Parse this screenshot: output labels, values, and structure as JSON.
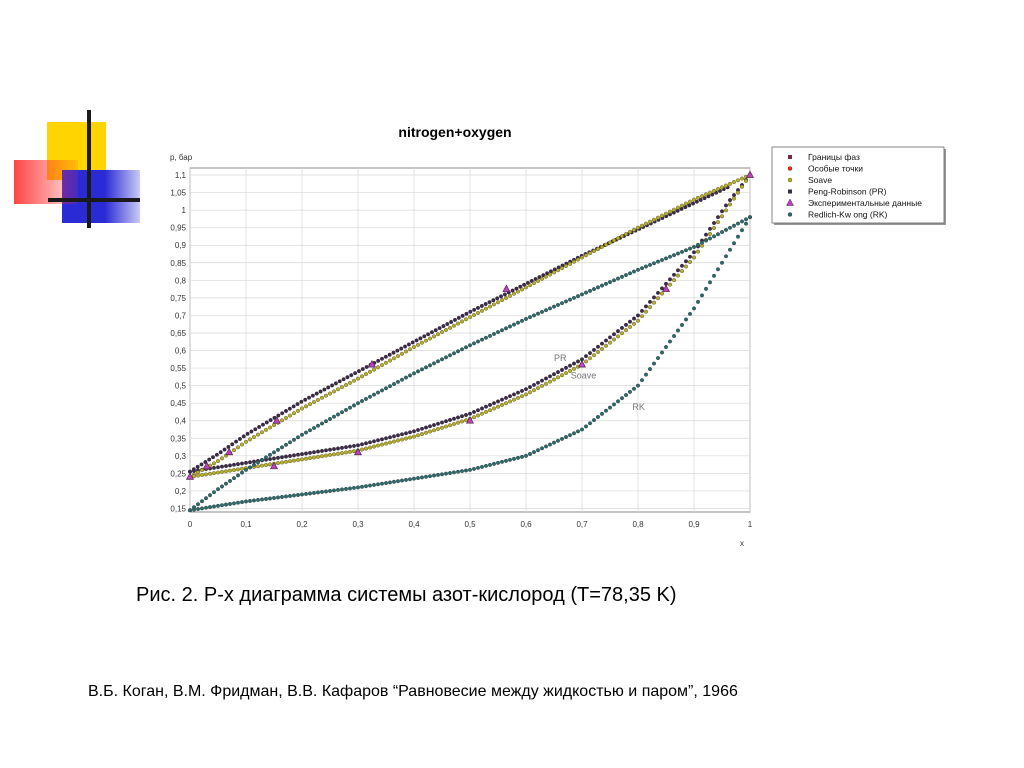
{
  "slide": {
    "caption": "Рис. 2. P-x диаграмма системы азот-кислород (T=78,35 K)",
    "citation": "В.Б. Коган, В.М. Фридман, В.В. Кафаров “Равновесие между жидкостью и паром”, 1966"
  },
  "decoration": {
    "colors": {
      "yellow": "#ffd400",
      "blue": "#2b2bd6",
      "red": "#ff3030",
      "lines": "#1a1a1a"
    }
  },
  "chart_data": {
    "type": "scatter",
    "title": "nitrogen+oxygen",
    "xlabel": "x",
    "ylabel": "p, бар",
    "xlim": [
      0,
      1
    ],
    "ylim": [
      0.14,
      1.12
    ],
    "grid": true,
    "x_ticks": [
      "0",
      "0,1",
      "0,2",
      "0,3",
      "0,4",
      "0,5",
      "0,6",
      "0,7",
      "0,8",
      "0,9",
      "1"
    ],
    "y_ticks": [
      "0,15",
      "0,2",
      "0,25",
      "0,3",
      "0,35",
      "0,4",
      "0,45",
      "0,5",
      "0,55",
      "0,6",
      "0,65",
      "0,7",
      "0,75",
      "0,8",
      "0,85",
      "0,9",
      "0,95",
      "1",
      "1,05",
      "1,1"
    ],
    "legend_position": "top-right",
    "legend": [
      {
        "label": "Границы фаз",
        "color": "#7a2a3a",
        "marker": "square"
      },
      {
        "label": "Особые точки",
        "color": "#ff2020",
        "marker": "dot"
      },
      {
        "label": "Soave",
        "color": "#b8b020",
        "marker": "circle"
      },
      {
        "label": "Peng-Robinson (PR)",
        "color": "#3d2a4a",
        "marker": "square"
      },
      {
        "label": "Экспериментальные данные",
        "color": "#c040c0",
        "marker": "triangle"
      },
      {
        "label": "Redlich-Kw ong (RK)",
        "color": "#2a6a6a",
        "marker": "circle"
      }
    ],
    "annotations": [
      {
        "text": "PR",
        "x": 0.65,
        "y": 0.57
      },
      {
        "text": "Soave",
        "x": 0.68,
        "y": 0.52
      },
      {
        "text": "RK",
        "x": 0.79,
        "y": 0.43
      }
    ],
    "series": [
      {
        "name": "Peng-Robinson (PR)",
        "color": "#3d2a4a",
        "bubble": [
          [
            0,
            0.255
          ],
          [
            0.05,
            0.305
          ],
          [
            0.1,
            0.36
          ],
          [
            0.2,
            0.455
          ],
          [
            0.3,
            0.54
          ],
          [
            0.4,
            0.625
          ],
          [
            0.5,
            0.71
          ],
          [
            0.6,
            0.79
          ],
          [
            0.7,
            0.87
          ],
          [
            0.8,
            0.945
          ],
          [
            0.9,
            1.02
          ],
          [
            0.96,
            1.065
          ]
        ],
        "dew": [
          [
            0,
            0.255
          ],
          [
            0.1,
            0.28
          ],
          [
            0.2,
            0.305
          ],
          [
            0.3,
            0.33
          ],
          [
            0.4,
            0.37
          ],
          [
            0.5,
            0.42
          ],
          [
            0.6,
            0.49
          ],
          [
            0.7,
            0.575
          ],
          [
            0.8,
            0.7
          ],
          [
            0.9,
            0.88
          ],
          [
            0.96,
            1.02
          ],
          [
            1,
            1.1
          ]
        ]
      },
      {
        "name": "Soave",
        "color": "#b8b020",
        "bubble": [
          [
            0,
            0.24
          ],
          [
            0.05,
            0.285
          ],
          [
            0.1,
            0.34
          ],
          [
            0.2,
            0.435
          ],
          [
            0.3,
            0.52
          ],
          [
            0.4,
            0.61
          ],
          [
            0.5,
            0.695
          ],
          [
            0.6,
            0.78
          ],
          [
            0.7,
            0.865
          ],
          [
            0.8,
            0.95
          ],
          [
            0.9,
            1.03
          ],
          [
            1,
            1.1
          ]
        ],
        "dew": [
          [
            0,
            0.24
          ],
          [
            0.1,
            0.265
          ],
          [
            0.2,
            0.29
          ],
          [
            0.3,
            0.315
          ],
          [
            0.4,
            0.355
          ],
          [
            0.5,
            0.405
          ],
          [
            0.6,
            0.475
          ],
          [
            0.7,
            0.56
          ],
          [
            0.8,
            0.685
          ],
          [
            0.9,
            0.865
          ],
          [
            1,
            1.1
          ]
        ]
      },
      {
        "name": "Redlich-Kw ong (RK)",
        "color": "#2a6a6a",
        "bubble": [
          [
            0,
            0.145
          ],
          [
            0.05,
            0.205
          ],
          [
            0.1,
            0.26
          ],
          [
            0.2,
            0.36
          ],
          [
            0.3,
            0.45
          ],
          [
            0.4,
            0.535
          ],
          [
            0.5,
            0.615
          ],
          [
            0.6,
            0.69
          ],
          [
            0.7,
            0.76
          ],
          [
            0.8,
            0.83
          ],
          [
            0.9,
            0.895
          ],
          [
            1,
            0.98
          ]
        ],
        "dew": [
          [
            0,
            0.145
          ],
          [
            0.1,
            0.17
          ],
          [
            0.2,
            0.19
          ],
          [
            0.3,
            0.21
          ],
          [
            0.4,
            0.235
          ],
          [
            0.5,
            0.26
          ],
          [
            0.6,
            0.3
          ],
          [
            0.7,
            0.375
          ],
          [
            0.8,
            0.5
          ],
          [
            0.9,
            0.72
          ],
          [
            1,
            0.98
          ]
        ]
      },
      {
        "name": "Экспериментальные данные",
        "color": "#c040c0",
        "points": [
          [
            0,
            0.24
          ],
          [
            0.03,
            0.27
          ],
          [
            0.07,
            0.31
          ],
          [
            0.15,
            0.27
          ],
          [
            0.155,
            0.4
          ],
          [
            0.3,
            0.31
          ],
          [
            0.325,
            0.56
          ],
          [
            0.5,
            0.4
          ],
          [
            0.565,
            0.775
          ],
          [
            0.7,
            0.56
          ],
          [
            0.85,
            0.775
          ],
          [
            1,
            1.1
          ]
        ]
      }
    ]
  }
}
